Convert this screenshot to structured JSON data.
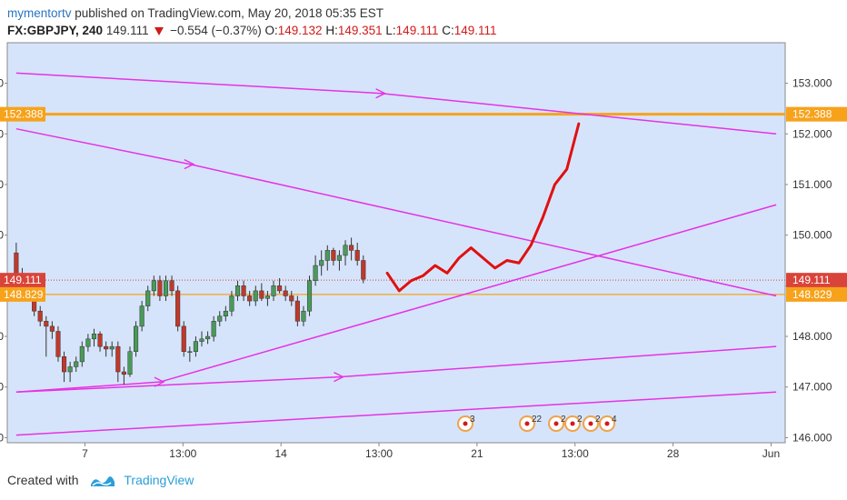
{
  "header": {
    "user": "mymentortv",
    "published_text": "published on TradingView.com, May 20, 2018 05:35 EST",
    "symbol": "FX:GBPJPY, 240",
    "last": "149.111",
    "change": "−0.554 (−0.37%)",
    "o_label": "O:",
    "o_value": "149.132",
    "h_label": "H:",
    "h_value": "149.351",
    "l_label": "L:",
    "l_value": "149.111",
    "c_label": "C:",
    "c_value": "149.111"
  },
  "footer": {
    "created_with": "Created with",
    "brand": "TradingView"
  },
  "colors": {
    "plot_bg": "#d6e4fb",
    "up_candle": "#4a9a5a",
    "down_candle": "#c0392b",
    "trendline": "#e532e5",
    "projection": "#e01010",
    "resistance": "#f7a21b",
    "price_label": "#d9443a"
  },
  "event_markers": [
    {
      "label": "3"
    },
    {
      "label": "22"
    },
    {
      "label": "2"
    },
    {
      "label": "2"
    },
    {
      "label": "2"
    },
    {
      "label": "4"
    }
  ],
  "chart_data": {
    "type": "candlestick",
    "y_range": [
      145.9,
      153.8
    ],
    "y_ticks": [
      "146.000",
      "147.000",
      "148.000",
      "149.000",
      "150.000",
      "151.000",
      "152.000",
      "153.000"
    ],
    "x_ticks": [
      "7",
      "13:00",
      "14",
      "13:00",
      "21",
      "13:00",
      "28",
      "Jun"
    ],
    "price_labels": [
      {
        "value": 152.388,
        "text": "152.388",
        "color": "#f7a21b"
      },
      {
        "value": 149.111,
        "text": "149.111",
        "color": "#d9443a"
      },
      {
        "value": 148.829,
        "text": "148.829",
        "color": "#f7a21b"
      }
    ],
    "horizontal_lines": [
      {
        "value": 152.388,
        "style": "solid-thick",
        "color": "#f7a21b"
      },
      {
        "value": 148.829,
        "style": "solid",
        "color": "#f7a21b"
      },
      {
        "value": 149.111,
        "style": "dotted",
        "color": "#d9443a"
      }
    ],
    "candles": [
      [
        149.65,
        149.85,
        149.1,
        149.2
      ],
      [
        149.2,
        149.35,
        149.05,
        149.15
      ],
      [
        149.15,
        149.25,
        149.05,
        149.1
      ],
      [
        149.1,
        149.2,
        148.4,
        148.5
      ],
      [
        148.5,
        148.6,
        148.2,
        148.3
      ],
      [
        148.3,
        148.4,
        147.6,
        148.2
      ],
      [
        148.2,
        148.3,
        147.95,
        148.1
      ],
      [
        148.1,
        148.2,
        147.5,
        147.6
      ],
      [
        147.6,
        147.7,
        147.1,
        147.3
      ],
      [
        147.3,
        147.5,
        147.1,
        147.4
      ],
      [
        147.4,
        147.6,
        147.3,
        147.5
      ],
      [
        147.5,
        147.9,
        147.4,
        147.8
      ],
      [
        147.8,
        148.05,
        147.7,
        147.95
      ],
      [
        147.95,
        148.15,
        147.8,
        148.05
      ],
      [
        148.05,
        148.1,
        147.7,
        147.8
      ],
      [
        147.8,
        147.9,
        147.6,
        147.75
      ],
      [
        147.75,
        147.9,
        147.6,
        147.8
      ],
      [
        147.8,
        147.9,
        147.1,
        147.3
      ],
      [
        147.3,
        147.4,
        147.05,
        147.25
      ],
      [
        147.25,
        147.8,
        147.2,
        147.7
      ],
      [
        147.7,
        148.3,
        147.6,
        148.2
      ],
      [
        148.2,
        148.7,
        148.1,
        148.6
      ],
      [
        148.6,
        149.0,
        148.5,
        148.9
      ],
      [
        148.9,
        149.2,
        148.8,
        149.1
      ],
      [
        149.1,
        149.2,
        148.7,
        148.8
      ],
      [
        148.8,
        149.2,
        148.7,
        149.1
      ],
      [
        149.1,
        149.2,
        148.8,
        148.9
      ],
      [
        148.9,
        149.0,
        148.1,
        148.2
      ],
      [
        148.2,
        148.3,
        147.6,
        147.7
      ],
      [
        147.7,
        147.8,
        147.5,
        147.7
      ],
      [
        147.7,
        148.0,
        147.6,
        147.9
      ],
      [
        147.9,
        148.1,
        147.8,
        147.95
      ],
      [
        147.95,
        148.1,
        147.85,
        148.0
      ],
      [
        148.0,
        148.4,
        147.9,
        148.3
      ],
      [
        148.3,
        148.5,
        148.2,
        148.4
      ],
      [
        148.4,
        148.6,
        148.3,
        148.5
      ],
      [
        148.5,
        148.9,
        148.4,
        148.8
      ],
      [
        148.8,
        149.1,
        148.7,
        149.0
      ],
      [
        149.0,
        149.1,
        148.7,
        148.8
      ],
      [
        148.8,
        148.9,
        148.6,
        148.7
      ],
      [
        148.7,
        149.0,
        148.6,
        148.9
      ],
      [
        148.9,
        149.05,
        148.7,
        148.75
      ],
      [
        148.75,
        148.9,
        148.6,
        148.8
      ],
      [
        148.8,
        149.1,
        148.7,
        149.0
      ],
      [
        149.0,
        149.15,
        148.85,
        148.9
      ],
      [
        148.9,
        149.0,
        148.7,
        148.8
      ],
      [
        148.8,
        148.9,
        148.6,
        148.7
      ],
      [
        148.7,
        148.8,
        148.2,
        148.3
      ],
      [
        148.3,
        148.6,
        148.2,
        148.5
      ],
      [
        148.5,
        149.2,
        148.4,
        149.1
      ],
      [
        149.1,
        149.6,
        149.0,
        149.4
      ],
      [
        149.4,
        149.7,
        149.2,
        149.5
      ],
      [
        149.5,
        149.8,
        149.3,
        149.7
      ],
      [
        149.7,
        149.75,
        149.4,
        149.5
      ],
      [
        149.5,
        149.7,
        149.3,
        149.6
      ],
      [
        149.6,
        149.9,
        149.4,
        149.8
      ],
      [
        149.8,
        149.95,
        149.5,
        149.7
      ],
      [
        149.7,
        149.85,
        149.4,
        149.5
      ],
      [
        149.5,
        149.6,
        149.05,
        149.13
      ]
    ],
    "trendlines": [
      [
        [
          1,
          153.2
        ],
        [
          62,
          152.8
        ],
        [
          128,
          152.0
        ]
      ],
      [
        [
          1,
          152.1
        ],
        [
          30,
          151.4
        ],
        [
          128,
          148.8
        ]
      ],
      [
        [
          1,
          146.9
        ],
        [
          25,
          147.1
        ],
        [
          128,
          150.6
        ]
      ],
      [
        [
          1,
          146.9
        ],
        [
          55,
          147.2
        ],
        [
          128,
          147.8
        ]
      ],
      [
        [
          1,
          146.05
        ],
        [
          128,
          146.9
        ]
      ]
    ],
    "projection": [
      [
        63,
        149.25
      ],
      [
        65,
        148.9
      ],
      [
        67,
        149.1
      ],
      [
        69,
        149.2
      ],
      [
        71,
        149.4
      ],
      [
        73,
        149.25
      ],
      [
        75,
        149.55
      ],
      [
        77,
        149.75
      ],
      [
        79,
        149.55
      ],
      [
        81,
        149.35
      ],
      [
        83,
        149.5
      ],
      [
        85,
        149.45
      ],
      [
        87,
        149.8
      ],
      [
        89,
        150.35
      ],
      [
        91,
        151.0
      ],
      [
        93,
        151.3
      ],
      [
        95,
        152.2
      ]
    ]
  }
}
